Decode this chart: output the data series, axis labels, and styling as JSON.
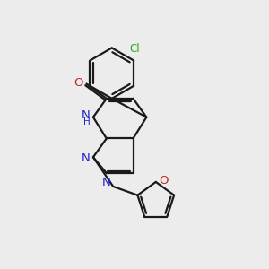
{
  "background_color": "#ececec",
  "bond_color": "#1a1a1a",
  "n_color": "#2222cc",
  "o_color": "#cc2222",
  "cl_color": "#22aa22",
  "line_width": 1.6,
  "figsize": [
    3.0,
    3.0
  ],
  "dpi": 100,
  "xlim": [
    0,
    10
  ],
  "ylim": [
    0,
    10
  ]
}
